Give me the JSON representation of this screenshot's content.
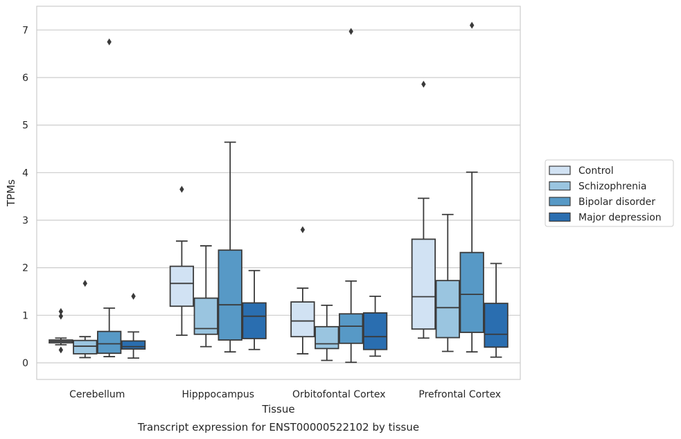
{
  "caption": "Transcript expression for ENST00000522102 by tissue",
  "chart_data": {
    "type": "box",
    "xlabel": "Tissue",
    "ylabel": "TPMs",
    "ylim": [
      -0.35,
      7.5
    ],
    "yticks": [
      0,
      1,
      2,
      3,
      4,
      5,
      6,
      7
    ],
    "grid": true,
    "legend_position": "right",
    "categories": [
      "Cerebellum",
      "Hipppocampus",
      "Orbitofontal Cortex",
      "Prefrontal Cortex"
    ],
    "series": [
      {
        "name": "Control",
        "color": "#d1e2f3",
        "boxes": [
          {
            "whislo": 0.38,
            "q1": 0.42,
            "med": 0.45,
            "q3": 0.48,
            "whishi": 0.52,
            "fliers": [
              1.08,
              0.98,
              0.27
            ]
          },
          {
            "whislo": 0.58,
            "q1": 1.19,
            "med": 1.67,
            "q3": 2.03,
            "whishi": 2.56,
            "fliers": [
              3.65
            ]
          },
          {
            "whislo": 0.19,
            "q1": 0.55,
            "med": 0.88,
            "q3": 1.28,
            "whishi": 1.57,
            "fliers": [
              2.8
            ]
          },
          {
            "whislo": 0.52,
            "q1": 0.71,
            "med": 1.39,
            "q3": 2.6,
            "whishi": 3.46,
            "fliers": [
              5.86
            ]
          }
        ]
      },
      {
        "name": "Schizophrenia",
        "color": "#9ac5e0",
        "boxes": [
          {
            "whislo": 0.11,
            "q1": 0.19,
            "med": 0.35,
            "q3": 0.47,
            "whishi": 0.55,
            "fliers": [
              1.67
            ]
          },
          {
            "whislo": 0.34,
            "q1": 0.6,
            "med": 0.72,
            "q3": 1.36,
            "whishi": 2.46,
            "fliers": []
          },
          {
            "whislo": 0.05,
            "q1": 0.3,
            "med": 0.4,
            "q3": 0.76,
            "whishi": 1.21,
            "fliers": []
          },
          {
            "whislo": 0.24,
            "q1": 0.53,
            "med": 1.16,
            "q3": 1.73,
            "whishi": 3.12,
            "fliers": []
          }
        ]
      },
      {
        "name": "Bipolar disorder",
        "color": "#5799c6",
        "boxes": [
          {
            "whislo": 0.13,
            "q1": 0.2,
            "med": 0.4,
            "q3": 0.66,
            "whishi": 1.15,
            "fliers": [
              6.75
            ]
          },
          {
            "whislo": 0.23,
            "q1": 0.48,
            "med": 1.22,
            "q3": 2.37,
            "whishi": 4.64,
            "fliers": []
          },
          {
            "whislo": 0.01,
            "q1": 0.41,
            "med": 0.77,
            "q3": 1.03,
            "whishi": 1.72,
            "fliers": [
              6.97
            ]
          },
          {
            "whislo": 0.23,
            "q1": 0.64,
            "med": 1.44,
            "q3": 2.32,
            "whishi": 4.01,
            "fliers": [
              7.1
            ]
          }
        ]
      },
      {
        "name": "Major depression",
        "color": "#2a6eb0",
        "boxes": [
          {
            "whislo": 0.1,
            "q1": 0.29,
            "med": 0.34,
            "q3": 0.46,
            "whishi": 0.65,
            "fliers": [
              1.4
            ]
          },
          {
            "whislo": 0.28,
            "q1": 0.51,
            "med": 0.98,
            "q3": 1.26,
            "whishi": 1.94,
            "fliers": []
          },
          {
            "whislo": 0.14,
            "q1": 0.28,
            "med": 0.55,
            "q3": 1.05,
            "whishi": 1.4,
            "fliers": []
          },
          {
            "whislo": 0.12,
            "q1": 0.33,
            "med": 0.6,
            "q3": 1.25,
            "whishi": 2.09,
            "fliers": []
          }
        ]
      }
    ]
  }
}
